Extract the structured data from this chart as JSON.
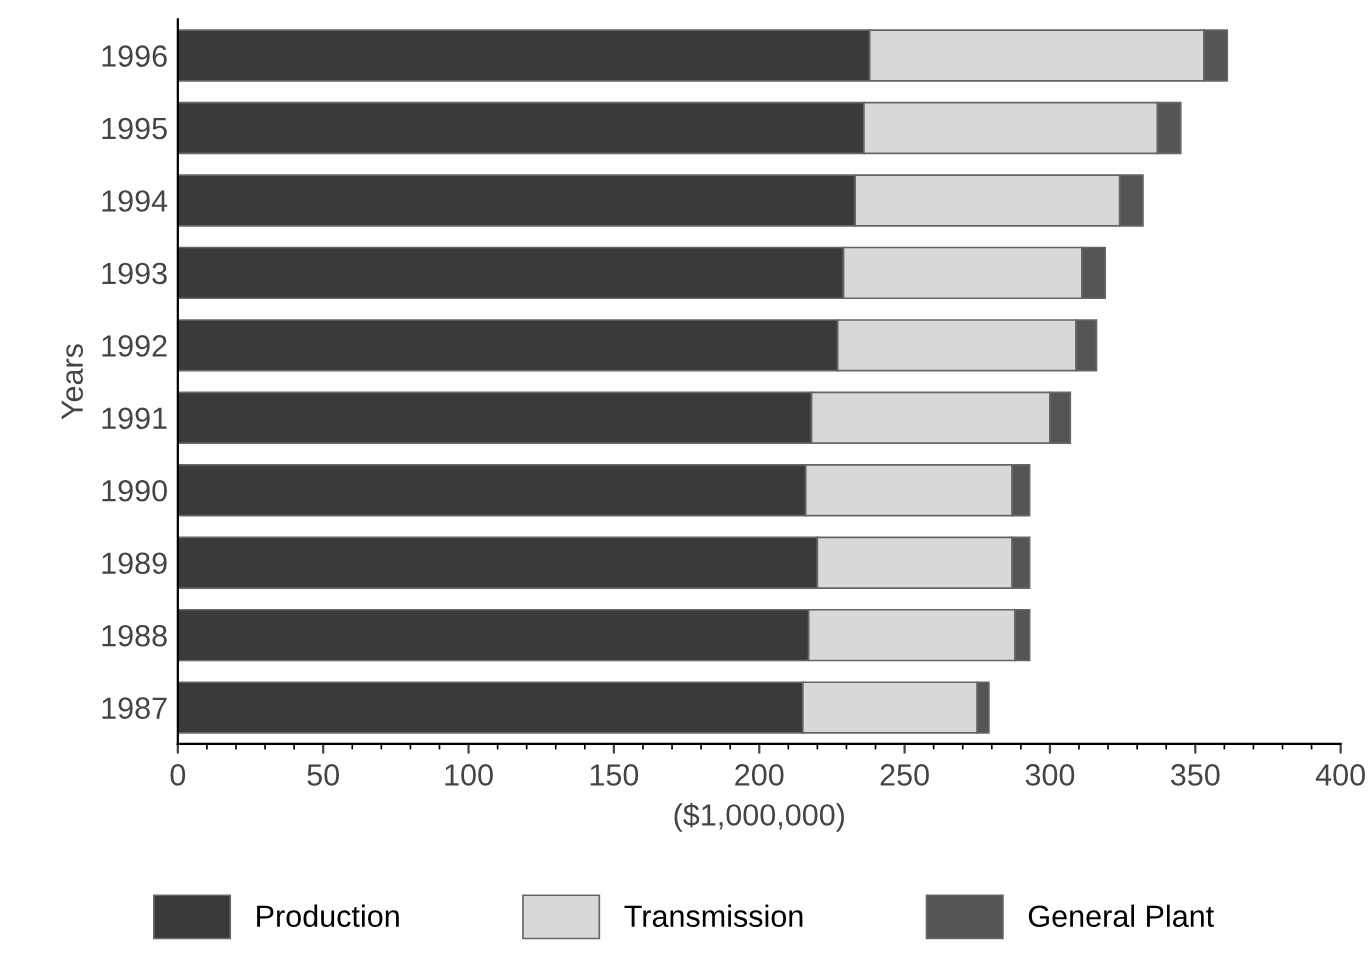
{
  "chart_data": {
    "type": "bar",
    "orientation": "horizontal",
    "stacked": true,
    "xlabel": "($1,000,000)",
    "ylabel": "Years",
    "categories": [
      "1996",
      "1995",
      "1994",
      "1993",
      "1992",
      "1991",
      "1990",
      "1989",
      "1988",
      "1987"
    ],
    "series": [
      {
        "name": "Production",
        "color": "#3a3a3a",
        "values": [
          238,
          236,
          233,
          229,
          227,
          218,
          216,
          220,
          217,
          215
        ]
      },
      {
        "name": "Transmission",
        "color": "#d8d8d8",
        "values": [
          115,
          101,
          91,
          82,
          82,
          82,
          71,
          67,
          71,
          60
        ]
      },
      {
        "name": "General Plant",
        "color": "#555555",
        "values": [
          8,
          8,
          8,
          8,
          7,
          7,
          6,
          6,
          5,
          4
        ]
      }
    ],
    "xlim": [
      0,
      400
    ],
    "xticks": [
      0,
      50,
      100,
      150,
      200,
      250,
      300,
      350,
      400
    ],
    "grid": false,
    "legend": "bottom"
  }
}
